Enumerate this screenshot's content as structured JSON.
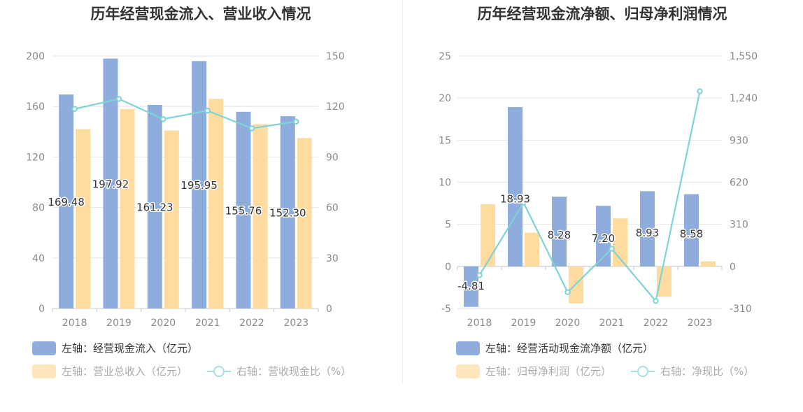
{
  "colors": {
    "bar_primary": "#8eacdc",
    "bar_secondary": "#ffdba0",
    "line": "#7dd3d6",
    "axis_text": "#8a8a8a",
    "grid": "#e6e6e6"
  },
  "chart_data": [
    {
      "type": "bar",
      "title": "历年经营现金流入、营业收入情况",
      "categories": [
        "2018",
        "2019",
        "2020",
        "2021",
        "2022",
        "2023"
      ],
      "y_left": {
        "min": 0,
        "max": 200,
        "ticks": [
          "0",
          "40",
          "80",
          "120",
          "160",
          "200"
        ]
      },
      "y_right": {
        "min": 0,
        "max": 150,
        "ticks": [
          "0",
          "30",
          "60",
          "90",
          "120",
          "150"
        ]
      },
      "series": [
        {
          "name": "左轴：经营现金流入（亿元）",
          "kind": "bar",
          "axis": "left",
          "values": [
            169.48,
            197.92,
            161.23,
            195.95,
            155.76,
            152.3
          ],
          "labels": [
            "169.48",
            "197.92",
            "161.23",
            "195.95",
            "155.76",
            "152.30"
          ]
        },
        {
          "name": "左轴：营业总收入（亿元）",
          "kind": "bar",
          "axis": "left",
          "values": [
            142,
            158,
            141,
            166,
            146,
            135
          ]
        },
        {
          "name": "右轴：营收现金比（%）",
          "kind": "line",
          "axis": "right",
          "values": [
            118.5,
            124.5,
            112.5,
            117.5,
            107,
            111
          ]
        }
      ]
    },
    {
      "type": "bar",
      "title": "历年经营现金流净额、归母净利润情况",
      "categories": [
        "2018",
        "2019",
        "2020",
        "2021",
        "2022",
        "2023"
      ],
      "y_left": {
        "min": -5,
        "max": 25,
        "ticks": [
          "-5",
          "0",
          "5",
          "10",
          "15",
          "20",
          "25"
        ]
      },
      "y_right": {
        "min": -310,
        "max": 1550,
        "ticks": [
          "-310",
          "0",
          "310",
          "620",
          "930",
          "1,240",
          "1,550"
        ]
      },
      "series": [
        {
          "name": "左轴：经营活动现金流净额（亿元）",
          "kind": "bar",
          "axis": "left",
          "values": [
            -4.81,
            18.93,
            8.28,
            7.2,
            8.93,
            8.58
          ],
          "labels": [
            "-4.81",
            "18.93",
            "8.28",
            "7.20",
            "8.93",
            "8.58"
          ]
        },
        {
          "name": "左轴：归母净利润（亿元）",
          "kind": "bar",
          "axis": "left",
          "values": [
            7.4,
            4.0,
            -4.4,
            5.7,
            -3.6,
            0.6
          ]
        },
        {
          "name": "右轴：净现比（%）",
          "kind": "line",
          "axis": "right",
          "values": [
            -65,
            470,
            -190,
            130,
            -255,
            1290
          ]
        }
      ]
    }
  ]
}
